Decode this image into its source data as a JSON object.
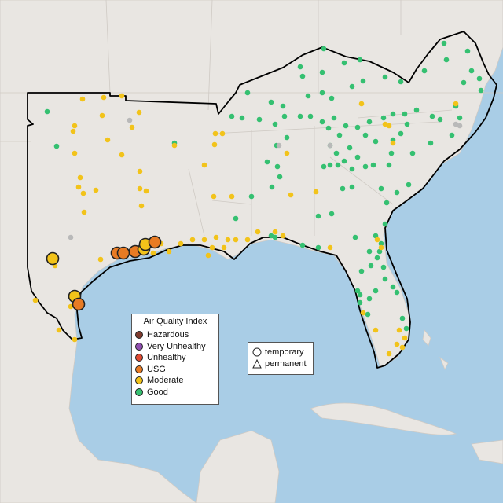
{
  "map": {
    "colors": {
      "water": "#a9cde6",
      "land": "#e9e6e2",
      "outline": "#000000"
    },
    "aqi_legend": {
      "title": "Air Quality Index",
      "items": [
        {
          "label": "Hazardous",
          "color": "#7e3b2e"
        },
        {
          "label": "Very Unhealthy",
          "color": "#8f4fb0"
        },
        {
          "label": "Unhealthy",
          "color": "#e04a32"
        },
        {
          "label": "USG",
          "color": "#e87b24"
        },
        {
          "label": "Moderate",
          "color": "#f2c31a"
        },
        {
          "label": "Good",
          "color": "#35c071"
        }
      ]
    },
    "type_legend": {
      "items": [
        {
          "label": "temporary",
          "icon": "circle-icon"
        },
        {
          "label": "permanent",
          "icon": "triangle-icon"
        }
      ]
    }
  }
}
